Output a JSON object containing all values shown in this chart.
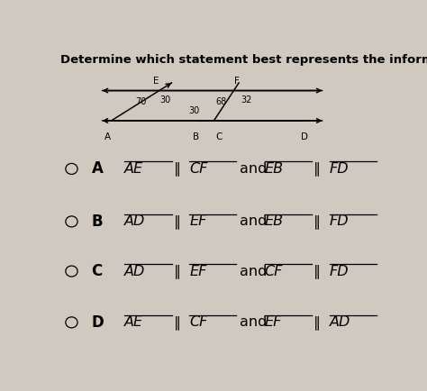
{
  "title": "Determine which statement best represents the information in the figure.",
  "title_fontsize": 9.5,
  "bg_color": "#cfc9c0",
  "fig_labels": [
    "E",
    "F",
    "A",
    "B",
    "C",
    "D"
  ],
  "fig_angles": [
    "70",
    "30",
    "68",
    "32",
    "30"
  ],
  "opts": [
    [
      "A",
      "AE",
      "CF",
      "EB",
      "FD"
    ],
    [
      "B",
      "AD",
      "EF",
      "EB",
      "FD"
    ],
    [
      "C",
      "AD",
      "EF",
      "CF",
      "FD"
    ],
    [
      "D",
      "AE",
      "CF",
      "EF",
      "AD"
    ]
  ],
  "opt_fontsize": 11.5,
  "letter_fontsize": 12
}
